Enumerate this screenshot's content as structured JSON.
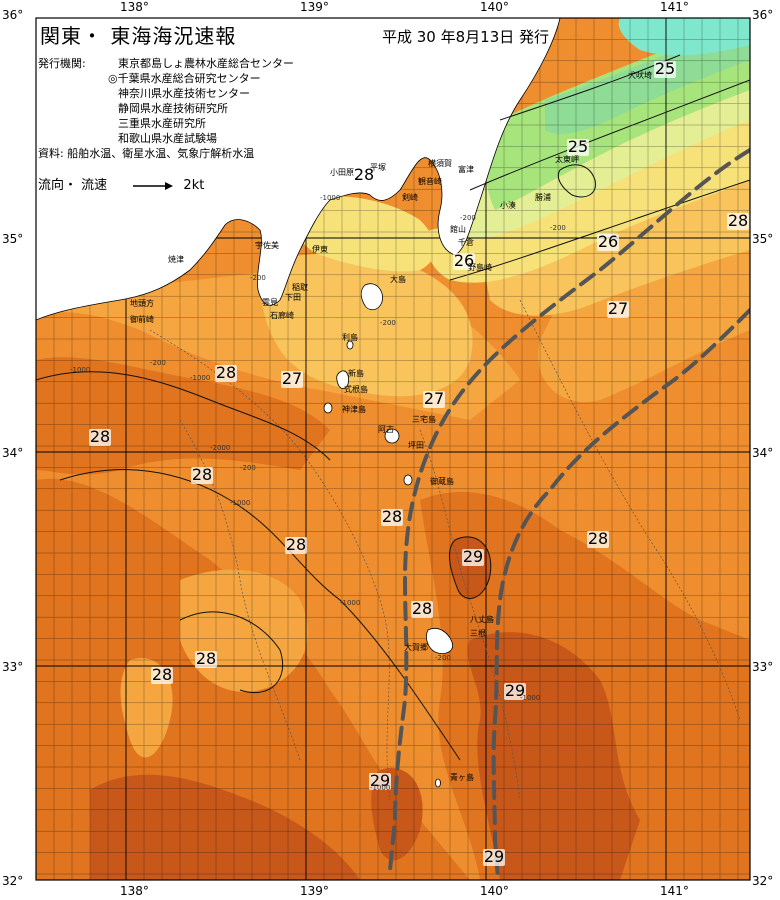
{
  "header": {
    "title": "関東・ 東海海況速報",
    "issued": "平成 30 年8月13日 発行"
  },
  "agencies": {
    "label": "発行機関:",
    "items": [
      "東京都島しょ農林水産総合センター",
      "◎千葉県水産総合研究センター",
      "神奈川県水産技術センター",
      "静岡県水産技術研究所",
      "三重県水産研究所",
      "和歌山県水産試験場"
    ]
  },
  "sources": "資料: 船舶水温、衛星水温、気象庁解析水温",
  "legend": {
    "label": "流向・ 流速",
    "speed": "2kt"
  },
  "axes": {
    "lon_ticks": [
      "138°",
      "139°",
      "140°",
      "141°"
    ],
    "lat_left": [
      "36°",
      "35°",
      "34°",
      "33°",
      "32°"
    ],
    "lat_right": [
      "36°",
      "35°",
      "34°",
      "33°",
      "32°"
    ]
  },
  "isotherms": [
    {
      "label": "25",
      "pos": "offshore-choshi"
    },
    {
      "label": "25",
      "pos": "off-katsuura"
    },
    {
      "label": "26",
      "pos": "off-boso"
    },
    {
      "label": "26",
      "pos": "mouth-tokyo-bay"
    },
    {
      "label": "27",
      "pos": "east-boso"
    },
    {
      "label": "27",
      "pos": "off-izu"
    },
    {
      "label": "27",
      "pos": "near-miyake"
    },
    {
      "label": "28",
      "pos": "sagami-bay"
    },
    {
      "label": "28",
      "pos": "far-east"
    },
    {
      "label": "28",
      "pos": "west-1"
    },
    {
      "label": "28",
      "pos": "west-2"
    },
    {
      "label": "28",
      "pos": "center-1"
    },
    {
      "label": "28",
      "pos": "center-2"
    },
    {
      "label": "28",
      "pos": "center-3"
    },
    {
      "label": "28",
      "pos": "southwest-1"
    },
    {
      "label": "28",
      "pos": "southwest-2"
    },
    {
      "label": "28",
      "pos": "east-center"
    },
    {
      "label": "28",
      "pos": "near-hachijo"
    },
    {
      "label": "29",
      "pos": "center"
    },
    {
      "label": "29",
      "pos": "south-east"
    },
    {
      "label": "29",
      "pos": "south-center"
    },
    {
      "label": "29",
      "pos": "bottom"
    }
  ],
  "places": [
    "犬吠埼",
    "太東岬",
    "勝浦",
    "小湊",
    "館山",
    "千倉",
    "野島崎",
    "富津",
    "横須賀",
    "観音崎",
    "剣崎",
    "平塚",
    "小田原",
    "大島",
    "伊東",
    "稲取",
    "下田",
    "石廊崎",
    "雲見",
    "宇佐美",
    "焼津",
    "御前崎",
    "地頭方",
    "利島",
    "新島",
    "式根島",
    "神津島",
    "三宅島",
    "御蔵島",
    "八丈島",
    "三根",
    "大賀郷",
    "青ヶ島",
    "坪田",
    "阿古"
  ],
  "depths": [
    "-200",
    "-1000",
    "-2000"
  ],
  "colors": {
    "land": "#ffffff",
    "t24": "#7fe8cc",
    "t25": "#8fdc96",
    "t255": "#a8e47c",
    "t26": "#e4ee94",
    "t265": "#f7e27a",
    "t27": "#f9c45c",
    "t275": "#f5a640",
    "t28": "#ef8e2f",
    "t285": "#e0741f",
    "t29": "#c8581a",
    "kuroshio": "#555555"
  }
}
